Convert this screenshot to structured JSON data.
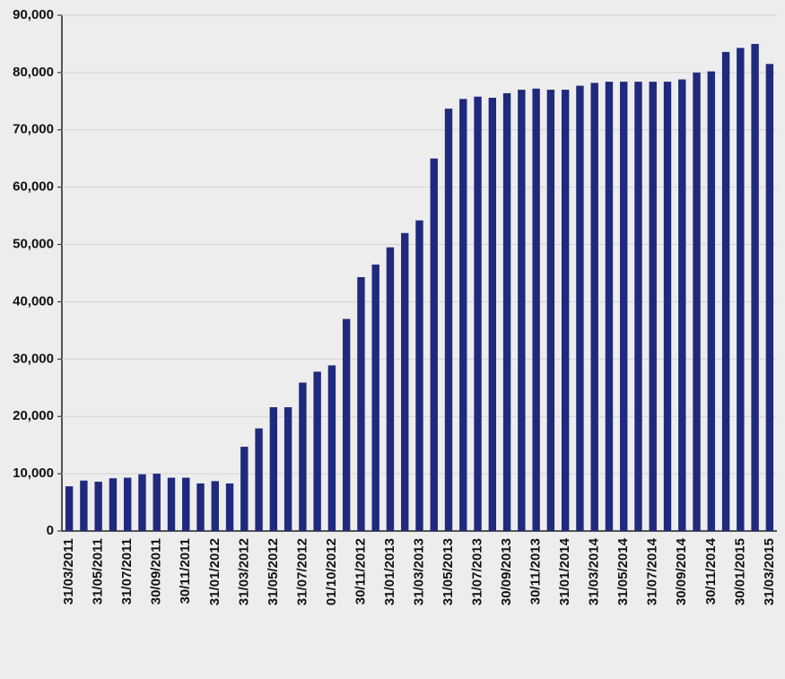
{
  "chart_data": {
    "type": "bar",
    "categories": [
      "31/03/2011",
      null,
      "31/05/2011",
      null,
      "31/07/2011",
      null,
      "30/09/2011",
      null,
      "30/11/2011",
      null,
      "31/01/2012",
      null,
      "31/03/2012",
      null,
      "31/05/2012",
      null,
      "31/07/2012",
      null,
      "01/10/2012",
      null,
      "30/11/2012",
      null,
      "31/01/2013",
      null,
      "31/03/2013",
      null,
      "31/05/2013",
      null,
      "31/07/2013",
      null,
      "30/09/2013",
      null,
      "30/11/2013",
      null,
      "31/01/2014",
      null,
      "31/03/2014",
      null,
      "31/05/2014",
      null,
      "31/07/2014",
      null,
      "30/09/2014",
      null,
      "30/11/2014",
      null,
      "30/01/2015",
      null,
      "31/03/2015"
    ],
    "values": [
      7800,
      8800,
      8600,
      9200,
      9300,
      9900,
      10000,
      9300,
      9300,
      8300,
      8700,
      8300,
      14700,
      17900,
      21600,
      21600,
      25900,
      27800,
      28900,
      37000,
      44300,
      46500,
      49500,
      52000,
      54200,
      65000,
      73700,
      75400,
      75800,
      75600,
      76400,
      77000,
      77200,
      77000,
      77000,
      77700,
      78200,
      78400,
      78400,
      78400,
      78400,
      78400,
      78800,
      80000,
      80200,
      83600,
      84300,
      85000,
      81500
    ],
    "color": "#1f2a7d",
    "ylim": [
      0,
      90000
    ],
    "yticks": [
      0,
      {
        "value": 10000,
        "label": "10,000"
      },
      {
        "value": 20000,
        "label": "20,000"
      },
      {
        "value": 30000,
        "label": "30,000"
      },
      {
        "value": 40000,
        "label": "40,000"
      },
      {
        "value": 50000,
        "label": "50,000"
      },
      {
        "value": 60000,
        "label": "60,000"
      },
      {
        "value": 70000,
        "label": "70,000"
      },
      {
        "value": 80000,
        "label": "80,000"
      },
      {
        "value": 90000,
        "label": "90,000"
      }
    ],
    "grid": true
  }
}
